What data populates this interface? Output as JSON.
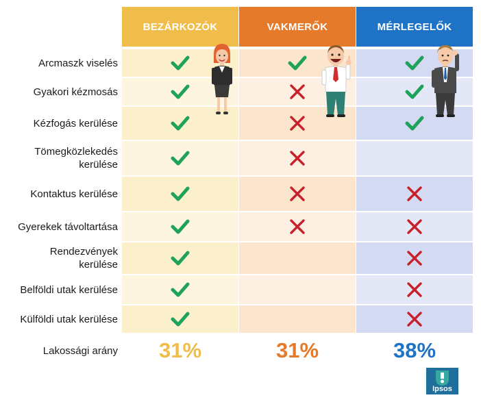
{
  "columns": [
    {
      "title": "BEZÁRKOZÓK",
      "color": "#f1bd4a",
      "light": "#fcefcb",
      "lighter": "#fdf5df",
      "percent": "31%",
      "pct_color": "#f1bd4a"
    },
    {
      "title": "VAKMERŐK",
      "color": "#e57a2b",
      "light": "#fbe5cd",
      "lighter": "#fdefe2",
      "percent": "31%",
      "pct_color": "#e57a2b"
    },
    {
      "title": "MÉRLEGELŐK",
      "color": "#1f73c6",
      "light": "#d3daf1",
      "lighter": "#e4e8f6",
      "percent": "38%",
      "pct_color": "#1f73c6"
    }
  ],
  "rows": [
    {
      "label": "Arcmaszk viselés",
      "marks": [
        "check",
        "check",
        "check"
      ]
    },
    {
      "label": "Gyakori kézmosás",
      "marks": [
        "check",
        "cross",
        "check"
      ]
    },
    {
      "label": "Kézfogás kerülése",
      "marks": [
        "check",
        "cross",
        "check"
      ]
    },
    {
      "label": "Tömegközlekedés\nkerülése",
      "marks": [
        "check",
        "cross",
        ""
      ]
    },
    {
      "label": "Kontaktus kerülése",
      "marks": [
        "check",
        "cross",
        "cross"
      ]
    },
    {
      "label": "Gyerekek távoltartása",
      "marks": [
        "check",
        "cross",
        "cross"
      ]
    },
    {
      "label": "Rendezvények\nkerülése",
      "marks": [
        "check",
        "",
        "cross"
      ]
    },
    {
      "label": "Belföldi utak kerülése",
      "marks": [
        "check",
        "",
        "cross"
      ]
    },
    {
      "label": "Külföldi utak kerülése",
      "marks": [
        "check",
        "",
        "cross"
      ]
    }
  ],
  "footer": {
    "label": "Lakossági arány"
  },
  "logo": {
    "text": "Ipsos"
  },
  "icons": {
    "check": "check-icon",
    "cross": "cross-icon"
  },
  "mark_colors": {
    "check": "#1fa35a",
    "cross": "#c8202b"
  }
}
